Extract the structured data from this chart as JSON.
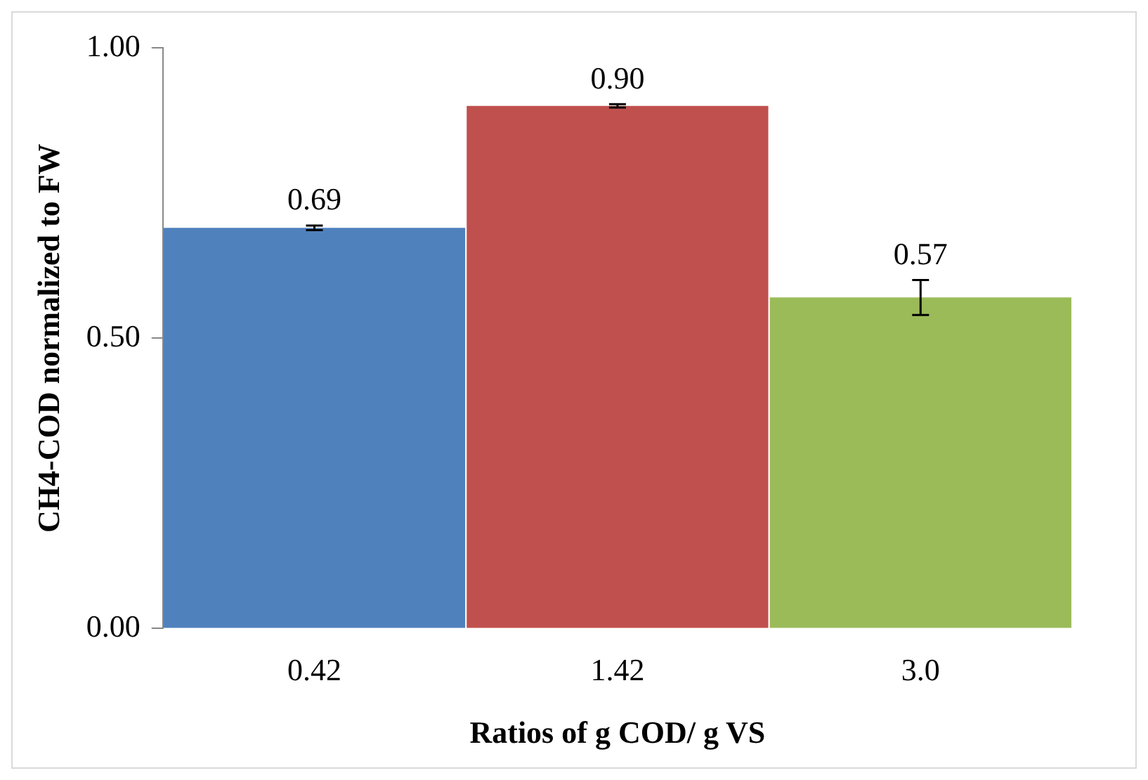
{
  "chart_data": {
    "type": "bar",
    "xlabel": "Ratios of g COD/ g VS",
    "ylabel": "CH4-COD normalized to FW",
    "categories": [
      "0.42",
      "1.42",
      "3.0"
    ],
    "values": [
      0.69,
      0.9,
      0.57
    ],
    "colors": [
      "#4f81bd",
      "#c0504d",
      "#9bbb59"
    ],
    "errors": [
      0.004,
      0.003,
      0.03
    ],
    "ylim": [
      0,
      1
    ],
    "yticks": [
      {
        "value": 0,
        "label": "0.00"
      },
      {
        "value": 0.5,
        "label": "0.50"
      },
      {
        "value": 1,
        "label": "1.00"
      }
    ],
    "value_labels": [
      "0.69",
      "0.90",
      "0.57"
    ],
    "grid": false,
    "legend": false
  }
}
